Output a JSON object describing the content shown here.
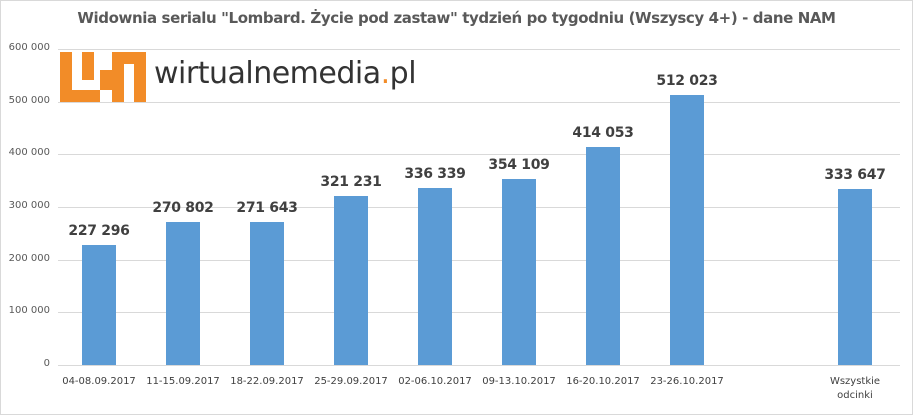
{
  "title": "Widownia serialu \"Lombard. Życie pod zastaw\" tydzień po tygodniu (Wszyscy 4+) - dane NAM",
  "logo": {
    "name": "wirtualnemedia",
    "dot": ".",
    "tld": "pl",
    "color": "#f28c28"
  },
  "y_ticks": [
    "0",
    "100 000",
    "200 000",
    "300 000",
    "400 000",
    "500 000",
    "600 000"
  ],
  "bars": [
    {
      "category": "04-08.09.2017",
      "value": 227296,
      "label": "227 296",
      "slot": 0
    },
    {
      "category": "11-15.09.2017",
      "value": 270802,
      "label": "270 802",
      "slot": 1
    },
    {
      "category": "18-22.09.2017",
      "value": 271643,
      "label": "271 643",
      "slot": 2
    },
    {
      "category": "25-29.09.2017",
      "value": 321231,
      "label": "321 231",
      "slot": 3
    },
    {
      "category": "02-06.10.2017",
      "value": 336339,
      "label": "336 339",
      "slot": 4
    },
    {
      "category": "09-13.10.2017",
      "value": 354109,
      "label": "354 109",
      "slot": 5
    },
    {
      "category": "16-20.10.2017",
      "value": 414053,
      "label": "414 053",
      "slot": 6
    },
    {
      "category": "23-26.10.2017",
      "value": 512023,
      "label": "512 023",
      "slot": 7
    },
    {
      "category": "Wszystkie odcinki",
      "category_lines": [
        "Wszystkie",
        "odcinki"
      ],
      "value": 333647,
      "label": "333 647",
      "slot": 9
    }
  ],
  "colors": {
    "bar": "#5b9bd5",
    "grid": "#d9d9d9",
    "text": "#595959"
  },
  "chart_data": {
    "type": "bar",
    "title": "Widownia serialu \"Lombard. Życie pod zastaw\" tydzień po tygodniu (Wszyscy 4+) - dane NAM",
    "categories": [
      "04-08.09.2017",
      "11-15.09.2017",
      "18-22.09.2017",
      "25-29.09.2017",
      "02-06.10.2017",
      "09-13.10.2017",
      "16-20.10.2017",
      "23-26.10.2017",
      "Wszystkie odcinki"
    ],
    "values": [
      227296,
      270802,
      271643,
      321231,
      336339,
      354109,
      414053,
      512023,
      333647
    ],
    "data_labels": [
      "227 296",
      "270 802",
      "271 643",
      "321 231",
      "336 339",
      "354 109",
      "414 053",
      "512 023",
      "333 647"
    ],
    "xlabel": "",
    "ylabel": "",
    "ylim": [
      0,
      600000
    ],
    "y_ticks": [
      0,
      100000,
      200000,
      300000,
      400000,
      500000,
      600000
    ],
    "grid": true,
    "legend": "none",
    "bar_color": "#5b9bd5"
  }
}
